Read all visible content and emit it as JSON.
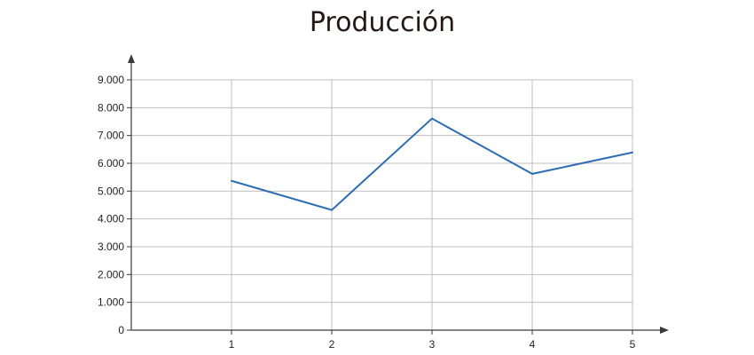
{
  "chart_data": {
    "type": "line",
    "title": "Producción",
    "xlabel": "",
    "ylabel": "",
    "x": [
      1,
      2,
      3,
      4,
      5
    ],
    "series": [
      {
        "values": [
          5370,
          4320,
          7610,
          5620,
          6390
        ]
      }
    ],
    "x_ticks": [
      "1",
      "2",
      "3",
      "4",
      "5"
    ],
    "y_ticks": [
      0,
      1000,
      2000,
      3000,
      4000,
      5000,
      6000,
      7000,
      8000,
      9000
    ],
    "y_tick_labels": [
      "0",
      "1.000",
      "2.000",
      "3.000",
      "4.000",
      "5.000",
      "6.000",
      "7.000",
      "8.000",
      "9.000"
    ],
    "xlim": [
      0,
      5
    ],
    "ylim": [
      0,
      9000
    ],
    "grid": true,
    "colors": {
      "line": "#2e6db4",
      "grid": "#bfbfbf",
      "axis": "#3a3a3a"
    }
  }
}
